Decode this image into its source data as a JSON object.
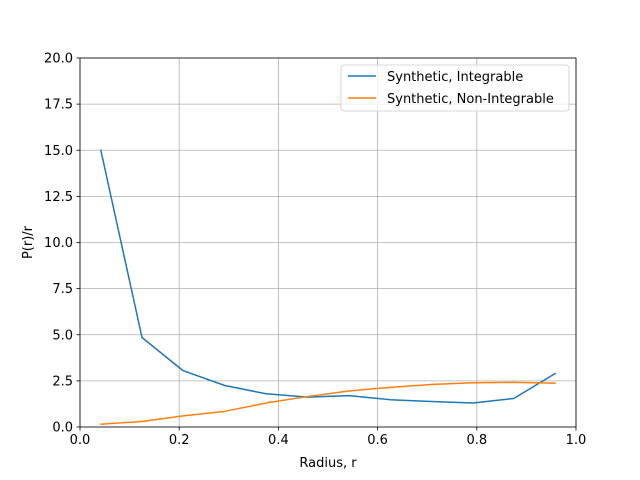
{
  "chart_data": {
    "type": "line",
    "title": "",
    "xlabel": "Radius, r",
    "ylabel": "P(r)/r",
    "xlim": [
      0.0,
      1.0
    ],
    "ylim": [
      0.0,
      20.0
    ],
    "xticks": [
      0.0,
      0.2,
      0.4,
      0.6,
      0.8,
      1.0
    ],
    "yticks": [
      0.0,
      2.5,
      5.0,
      7.5,
      10.0,
      12.5,
      15.0,
      17.5,
      20.0
    ],
    "xtick_labels": [
      "0.0",
      "0.2",
      "0.4",
      "0.6",
      "0.8",
      "1.0"
    ],
    "ytick_labels": [
      "0.0",
      "2.5",
      "5.0",
      "7.5",
      "10.0",
      "12.5",
      "15.0",
      "17.5",
      "20.0"
    ],
    "grid": true,
    "legend_position": "top-right",
    "series": [
      {
        "name": "Synthetic, Integrable",
        "color": "#1f77b4",
        "x": [
          0.042,
          0.125,
          0.208,
          0.292,
          0.375,
          0.458,
          0.542,
          0.625,
          0.708,
          0.792,
          0.875,
          0.958
        ],
        "y": [
          15.0,
          4.85,
          3.05,
          2.25,
          1.8,
          1.62,
          1.7,
          1.48,
          1.38,
          1.3,
          1.55,
          2.9
        ]
      },
      {
        "name": "Synthetic, Non-Integrable",
        "color": "#ff7f0e",
        "x": [
          0.042,
          0.125,
          0.208,
          0.292,
          0.375,
          0.458,
          0.542,
          0.625,
          0.708,
          0.792,
          0.875,
          0.958
        ],
        "y": [
          0.15,
          0.3,
          0.6,
          0.85,
          1.3,
          1.65,
          1.95,
          2.15,
          2.3,
          2.4,
          2.42,
          2.38
        ]
      }
    ]
  }
}
